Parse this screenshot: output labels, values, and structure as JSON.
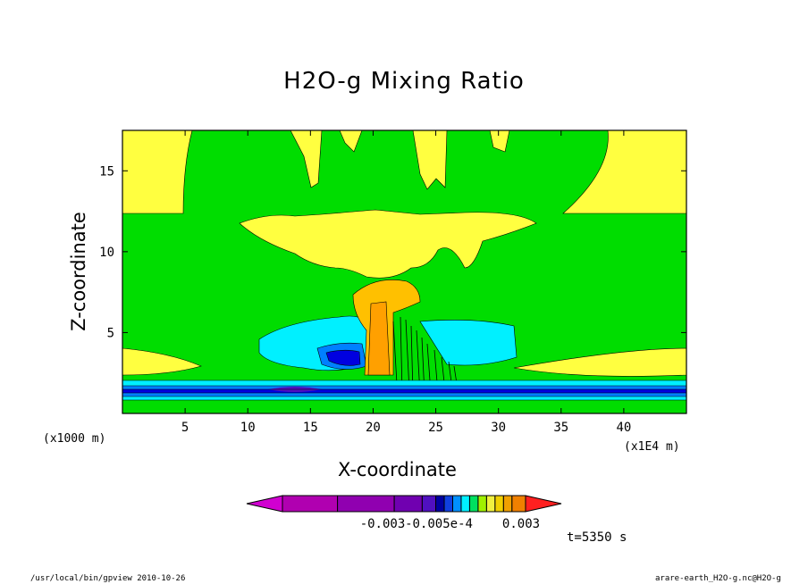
{
  "title": "H2O-g Mixing Ratio",
  "time_label": "t=5350 s",
  "footer_left": "/usr/local/bin/gpview  2010-10-26",
  "footer_right": "arare-earth_H2O-g.nc@H2O-g",
  "chart_data": {
    "type": "contour",
    "title": "H2O-g Mixing Ratio",
    "xlabel": "X-coordinate",
    "ylabel": "Z-coordinate",
    "x_unit_left": "(x1000 m)",
    "x_unit_right": "(x1E4 m)",
    "xlim": [
      0,
      45
    ],
    "ylim": [
      0,
      17.5
    ],
    "x_ticks": [
      5,
      10,
      15,
      20,
      25,
      30,
      35,
      40
    ],
    "y_ticks": [
      5,
      10,
      15
    ],
    "colorbar": {
      "colors": [
        "#d000d0",
        "#b000b0",
        "#9000b0",
        "#7000b0",
        "#5010c0",
        "#0000a0",
        "#1040e0",
        "#0090ff",
        "#00f0ff",
        "#00e060",
        "#a0f000",
        "#f0f040",
        "#f0d000",
        "#f0a000",
        "#f08000",
        "#ff2020"
      ],
      "labels": [
        "-0.003",
        "-0.005e-4",
        "0.003"
      ]
    },
    "regions": [
      {
        "level": "green",
        "color": "#00dd00"
      },
      {
        "level": "yellow",
        "color": "#ffff40"
      },
      {
        "level": "cyan",
        "color": "#00f0ff"
      },
      {
        "level": "light-blue",
        "color": "#0080ff"
      },
      {
        "level": "blue",
        "color": "#0000e0"
      },
      {
        "level": "orange-light",
        "color": "#ffc000"
      },
      {
        "level": "orange",
        "color": "#ffa000"
      }
    ]
  }
}
